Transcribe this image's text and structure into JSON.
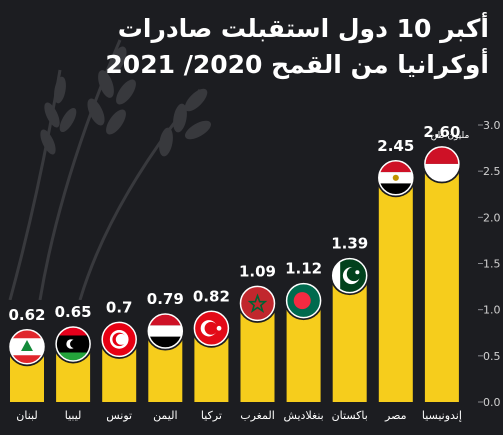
{
  "title_lines": [
    "أكبر 10 دول استقبلت صادرات",
    "أوكرانيا من القمح 2020/ 2021"
  ],
  "unit_label": "مليون طن",
  "colors": {
    "background": "#1c1d21",
    "bar": "#f6cd1c",
    "text": "#ffffff",
    "grid": "#3a3b40"
  },
  "chart_data": {
    "type": "bar",
    "categories": [
      "لبنان",
      "ليبيا",
      "تونس",
      "اليمن",
      "تركيا",
      "المغرب",
      "بنغلاديش",
      "باكستان",
      "مصر",
      "إندونيسيا"
    ],
    "values": [
      0.62,
      0.65,
      0.7,
      0.79,
      0.82,
      1.09,
      1.12,
      1.39,
      2.45,
      2.6
    ],
    "value_labels": [
      "0.62",
      "0.65",
      "0.7",
      "0.79",
      "0.82",
      "1.09",
      "1.12",
      "1.39",
      "2.45",
      "2.60"
    ],
    "flags": [
      "lebanon-flag",
      "libya-flag",
      "tunisia-flag",
      "yemen-flag",
      "turkey-flag",
      "morocco-flag",
      "bangladesh-flag",
      "pakistan-flag",
      "egypt-flag",
      "indonesia-flag"
    ],
    "ylim": [
      0,
      3.0
    ],
    "yticks": [
      0,
      0.5,
      1.0,
      1.5,
      2.0,
      2.5,
      3.0
    ],
    "ytick_labels": [
      "0.0",
      "0.5",
      "1.0",
      "1.5",
      "2.0",
      "2.5",
      "3.0"
    ],
    "axis_position": "right",
    "grid": false
  }
}
